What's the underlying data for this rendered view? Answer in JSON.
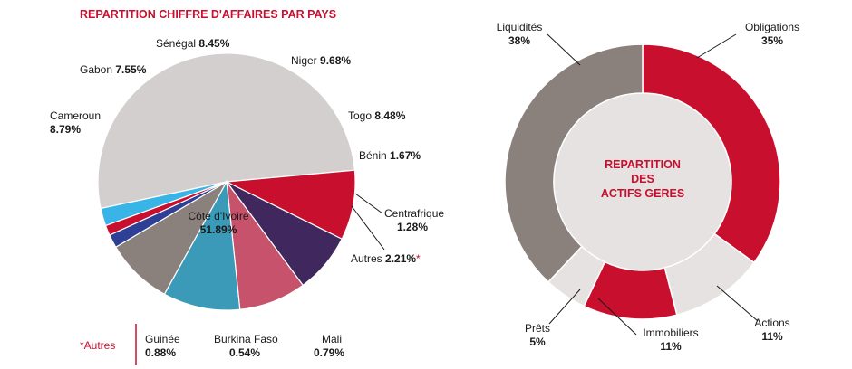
{
  "chart_data": [
    {
      "type": "pie",
      "title": "REPARTITION CHIFFRE D'AFFAIRES PAR PAYS",
      "slices": [
        {
          "label": "Côte d'Ivoire",
          "value": 51.89,
          "display": "51.89%",
          "color": "#d3cfcf"
        },
        {
          "label": "Cameroun",
          "value": 8.79,
          "display": "8.79%",
          "color": "#c8102e"
        },
        {
          "label": "Gabon",
          "value": 7.55,
          "display": "7.55%",
          "color": "#40285e"
        },
        {
          "label": "Sénégal",
          "value": 8.45,
          "display": "8.45%",
          "color": "#c6536b"
        },
        {
          "label": "Niger",
          "value": 9.68,
          "display": "9.68%",
          "color": "#3a9ab8"
        },
        {
          "label": "Togo",
          "value": 8.48,
          "display": "8.48%",
          "color": "#8a817d"
        },
        {
          "label": "Bénin",
          "value": 1.67,
          "display": "1.67%",
          "color": "#2e3f96"
        },
        {
          "label": "Centrafrique",
          "value": 1.28,
          "display": "1.28%",
          "color": "#c8102e"
        },
        {
          "label": "Autres",
          "value": 2.21,
          "display": "2.21%",
          "color": "#38b4e6",
          "marker": "*"
        }
      ],
      "footnote": {
        "label": "*Autres",
        "items": [
          {
            "label": "Guinée",
            "display": "0.88%"
          },
          {
            "label": "Burkina Faso",
            "display": "0.54%"
          },
          {
            "label": "Mali",
            "display": "0.79%"
          }
        ]
      }
    },
    {
      "type": "pie",
      "center_label": [
        "REPARTITION",
        "DES",
        "ACTIFS GERES"
      ],
      "slices": [
        {
          "label": "Obligations",
          "value": 35,
          "display": "35%",
          "color": "#c8102e"
        },
        {
          "label": "Actions",
          "value": 11,
          "display": "11%",
          "color": "#e6e2e2"
        },
        {
          "label": "Immobiliers",
          "value": 11,
          "display": "11%",
          "color": "#c8102e"
        },
        {
          "label": "Prêts",
          "value": 5,
          "display": "5%",
          "color": "#e6e2e2"
        },
        {
          "label": "Liquidités",
          "value": 38,
          "display": "38%",
          "color": "#8a817d"
        }
      ]
    }
  ]
}
